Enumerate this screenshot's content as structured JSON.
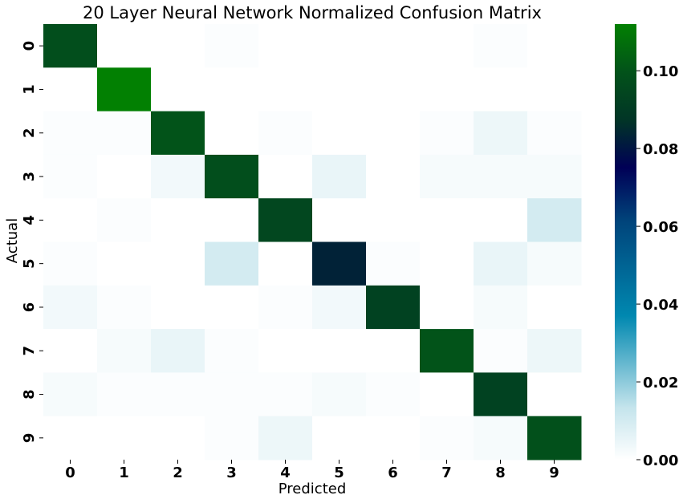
{
  "chart_data": {
    "type": "heatmap",
    "title": "20 Layer Neural Network Normalized Confusion Matrix",
    "xlabel": "Predicted",
    "ylabel": "Actual",
    "x_categories": [
      "0",
      "1",
      "2",
      "3",
      "4",
      "5",
      "6",
      "7",
      "8",
      "9"
    ],
    "y_categories": [
      "0",
      "1",
      "2",
      "3",
      "4",
      "5",
      "6",
      "7",
      "8",
      "9"
    ],
    "values": [
      [
        0.098,
        0.0,
        0.0,
        0.001,
        0.0,
        0.0,
        0.0,
        0.0,
        0.001,
        0.0
      ],
      [
        0.0,
        0.112,
        0.0,
        0.0,
        0.0,
        0.0,
        0.0,
        0.0,
        0.0,
        0.0
      ],
      [
        0.001,
        0.001,
        0.1,
        0.0,
        0.001,
        0.0,
        0.0,
        0.001,
        0.004,
        0.001
      ],
      [
        0.001,
        0.0,
        0.003,
        0.098,
        0.0,
        0.005,
        0.0,
        0.002,
        0.002,
        0.002
      ],
      [
        0.0,
        0.001,
        0.0,
        0.0,
        0.095,
        0.0,
        0.0,
        0.0,
        0.0,
        0.01
      ],
      [
        0.001,
        0.0,
        0.0,
        0.01,
        0.0,
        0.083,
        0.001,
        0.0,
        0.005,
        0.002
      ],
      [
        0.003,
        0.001,
        0.0,
        0.0,
        0.001,
        0.003,
        0.093,
        0.0,
        0.002,
        0.0
      ],
      [
        0.0,
        0.002,
        0.005,
        0.001,
        0.0,
        0.0,
        0.0,
        0.1,
        0.001,
        0.004
      ],
      [
        0.002,
        0.001,
        0.001,
        0.001,
        0.001,
        0.002,
        0.001,
        0.0,
        0.093,
        0.0
      ],
      [
        0.0,
        0.0,
        0.0,
        0.001,
        0.004,
        0.0,
        0.0,
        0.001,
        0.002,
        0.099
      ]
    ],
    "vmin": 0.0,
    "vmax": 0.112,
    "colormap": "ocean_r",
    "colorbar": {
      "ticks": [
        0.0,
        0.02,
        0.04,
        0.06,
        0.08,
        0.1
      ],
      "tick_labels": [
        "0.00",
        "0.02",
        "0.04",
        "0.06",
        "0.08",
        "0.10"
      ]
    },
    "grid": false
  }
}
